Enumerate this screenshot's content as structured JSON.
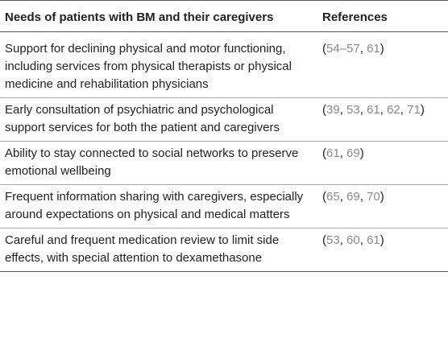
{
  "table": {
    "headers": {
      "needs": "Needs of patients with BM and their caregivers",
      "references": "References"
    },
    "rows": [
      {
        "need": "Support for declining physical and motor functioning, including services from physical therapists or physical medicine and rehabilitation physicians",
        "refs": [
          "54–57",
          "61"
        ]
      },
      {
        "need": "Early consultation of psychiatric and psychological support services for both the patient and caregivers",
        "refs": [
          "39",
          "53",
          "61",
          "62",
          "71"
        ]
      },
      {
        "need": "Ability to stay connected to social networks to preserve emotional wellbeing",
        "refs": [
          "61",
          "69"
        ]
      },
      {
        "need": "Frequent information sharing with caregivers, especially around expectations on physical and medical matters",
        "refs": [
          "65",
          "69",
          "70"
        ]
      },
      {
        "need": "Careful and frequent medication review to limit side effects, with special attention to dexamethasone",
        "refs": [
          "53",
          "60",
          "61"
        ]
      }
    ]
  },
  "colors": {
    "text": "#222222",
    "reference_link": "#8a8a8a",
    "rule_dark": "#555555",
    "rule_light": "#a8a8a8"
  }
}
